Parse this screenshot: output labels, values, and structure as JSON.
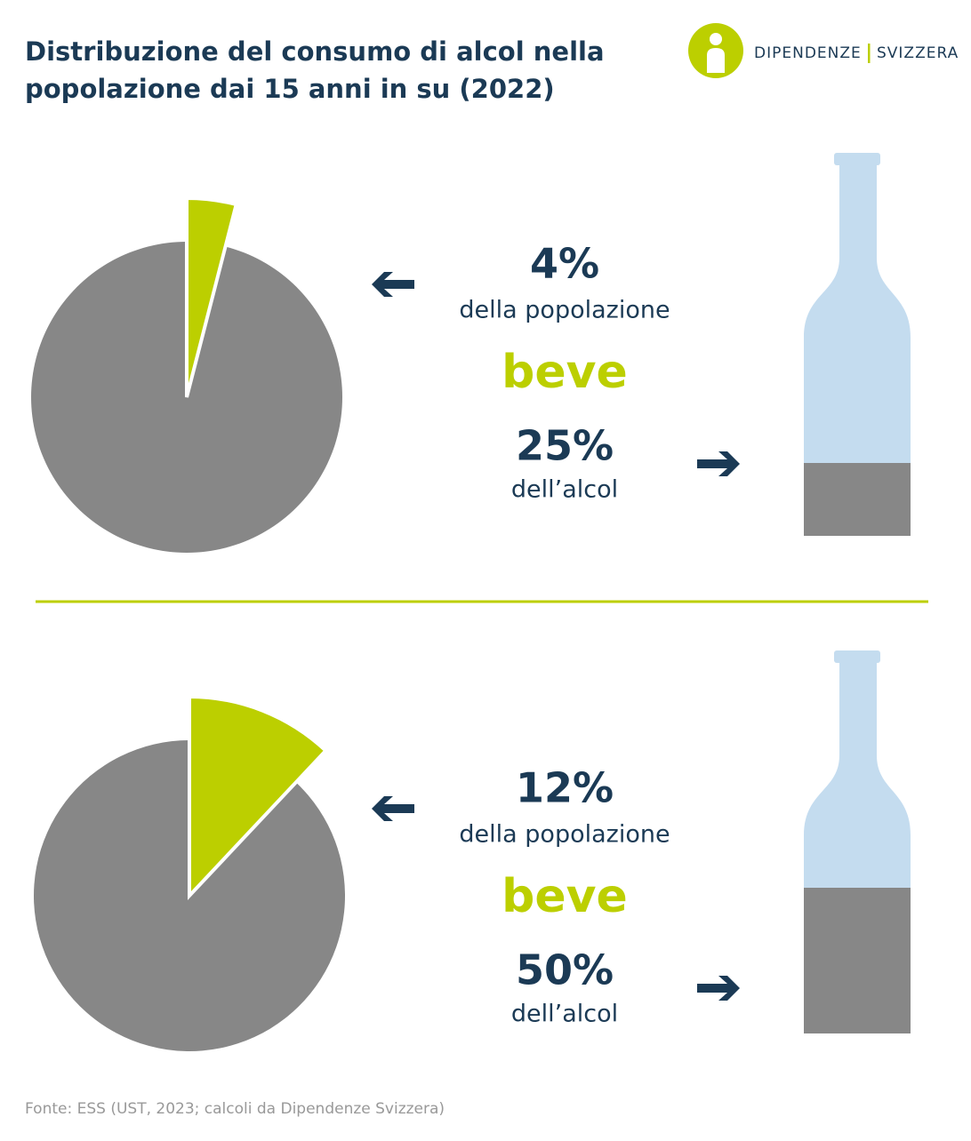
{
  "title": [
    "Distribuzione del consumo di alcol nella",
    "popolazione dai 15 anni in su (2022)"
  ],
  "logo": {
    "left": "DIPENDENZE",
    "right": "SVIZZERA"
  },
  "colors": {
    "highlight": "#bccf00",
    "rest": "#878787",
    "bottle": "#c4dcef",
    "text": "#1b3a55"
  },
  "panels": [
    {
      "population": {
        "value": 4,
        "label": "4%"
      },
      "population_text": "della popolazione",
      "verb": "beve",
      "alcohol": {
        "value": 25,
        "label": "25%"
      },
      "alcohol_text": "dell’alcol"
    },
    {
      "population": {
        "value": 12,
        "label": "12%"
      },
      "population_text": "della popolazione",
      "verb": "beve",
      "alcohol": {
        "value": 50,
        "label": "50%"
      },
      "alcohol_text": "dell’alcol"
    }
  ],
  "source": "Fonte: ESS (UST, 2023; calcoli da Dipendenze Svizzera)"
}
